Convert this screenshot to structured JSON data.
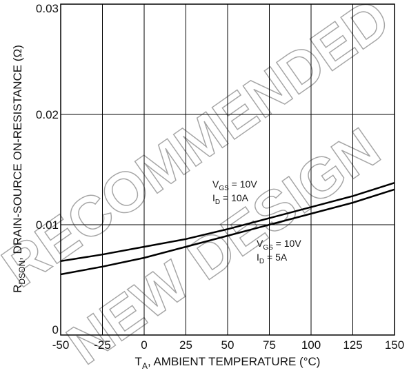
{
  "watermark": [
    "RECOMMENDED",
    "NEW DESIGN"
  ],
  "chart_data": {
    "type": "line",
    "xlabel": {
      "main": "T",
      "sub": "A",
      "rest": ", AMBIENT TEMPERATURE (°C)"
    },
    "ylabel": {
      "main": "R",
      "sub": "DSON",
      "rest": ", DRAIN-SOURCE ON-RESISTANCE (Ω)"
    },
    "xlim": [
      -50,
      150
    ],
    "ylim": [
      0,
      0.03
    ],
    "xticks": [
      -50,
      -25,
      0,
      25,
      50,
      75,
      100,
      125,
      150
    ],
    "xtick_labels": [
      "-50",
      "-25",
      "0",
      "25",
      "50",
      "75",
      "100",
      "125",
      "150"
    ],
    "yticks": [
      0,
      0.01,
      0.02,
      0.03
    ],
    "ytick_labels": [
      "0",
      "0.01",
      "0.02",
      "0.03"
    ],
    "grid": true,
    "series": [
      {
        "x": [
          -50,
          -25,
          0,
          25,
          50,
          75,
          100,
          125,
          150
        ],
        "y": [
          0.0067,
          0.0073,
          0.008,
          0.0087,
          0.0096,
          0.0106,
          0.0116,
          0.0126,
          0.0138
        ]
      },
      {
        "x": [
          -50,
          -25,
          0,
          25,
          50,
          75,
          100,
          125,
          150
        ],
        "y": [
          0.0055,
          0.0062,
          0.007,
          0.008,
          0.009,
          0.01,
          0.011,
          0.012,
          0.0132
        ]
      }
    ],
    "annotations": [
      {
        "lines": [
          {
            "main": "V",
            "sub": "GS",
            "rest": " = 10V"
          },
          {
            "main": "I",
            "sub": "D",
            "rest": " = 10A"
          }
        ]
      },
      {
        "lines": [
          {
            "main": "V",
            "sub": "GS",
            "rest": " = 10V"
          },
          {
            "main": "I",
            "sub": "D",
            "rest": " = 5A"
          }
        ]
      }
    ]
  }
}
